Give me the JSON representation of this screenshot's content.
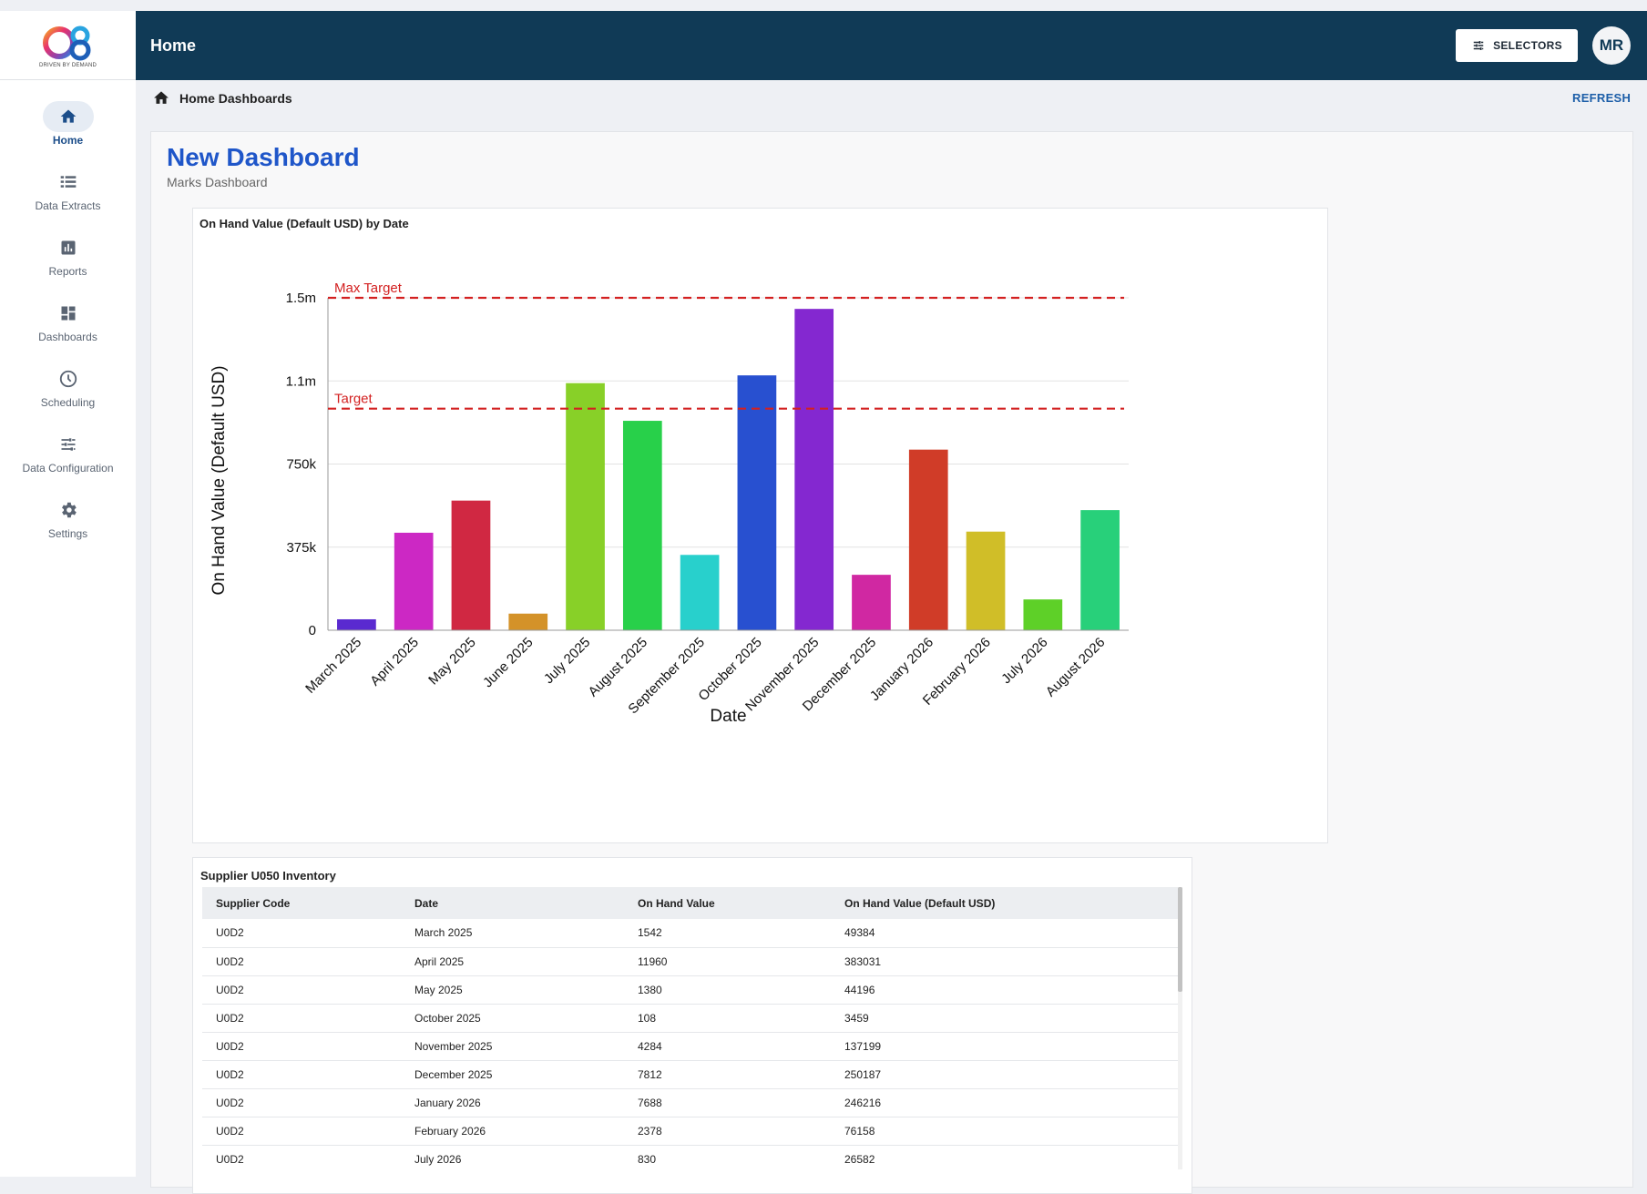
{
  "app": {
    "logo_text": "O8",
    "logo_tagline": "DRIVEN BY DEMAND",
    "header_title": "Home",
    "selectors_label": "SELECTORS",
    "user_initials": "MR",
    "breadcrumb": "Home Dashboards",
    "refresh_label": "REFRESH"
  },
  "sidebar": {
    "items": [
      {
        "label": "Home",
        "icon": "home-icon",
        "active": true
      },
      {
        "label": "Data Extracts",
        "icon": "list-icon",
        "active": false
      },
      {
        "label": "Reports",
        "icon": "bar-chart-icon",
        "active": false
      },
      {
        "label": "Dashboards",
        "icon": "dashboard-icon",
        "active": false
      },
      {
        "label": "Scheduling",
        "icon": "clock-icon",
        "active": false
      },
      {
        "label": "Data Configuration",
        "icon": "sliders-icon",
        "active": false
      },
      {
        "label": "Settings",
        "icon": "gear-icon",
        "active": false
      }
    ]
  },
  "dashboard": {
    "title": "New Dashboard",
    "subtitle": "Marks Dashboard"
  },
  "chart_data": {
    "type": "bar",
    "title": "On Hand Value (Default USD) by Date",
    "xlabel": "Date",
    "ylabel": "On Hand Value (Default USD)",
    "ylim": [
      0,
      1500000
    ],
    "yticks": [
      {
        "value": 0,
        "label": "0"
      },
      {
        "value": 375000,
        "label": "375k"
      },
      {
        "value": 750000,
        "label": "750k"
      },
      {
        "value": 1125000,
        "label": "1.1m"
      },
      {
        "value": 1500000,
        "label": "1.5m"
      }
    ],
    "grid": true,
    "categories": [
      "March 2025",
      "April 2025",
      "May 2025",
      "June 2025",
      "July 2025",
      "August 2025",
      "September 2025",
      "October 2025",
      "November 2025",
      "December 2025",
      "January 2026",
      "February 2026",
      "July 2026",
      "August 2026"
    ],
    "values": [
      49384,
      440000,
      585000,
      75000,
      1115000,
      945000,
      340000,
      1150000,
      1450000,
      250187,
      815000,
      445000,
      139000,
      542000
    ],
    "colors": [
      "#5a2ad0",
      "#cc28c4",
      "#d02842",
      "#d49229",
      "#88d028",
      "#28d04a",
      "#28d0cc",
      "#2850d0",
      "#8428d0",
      "#d028a2",
      "#d03c28",
      "#d0be28",
      "#5ed028",
      "#28d07a"
    ],
    "reference_lines": [
      {
        "label": "Max Target",
        "value": 1500000,
        "color": "#d32121"
      },
      {
        "label": "Target",
        "value": 1000000,
        "color": "#d32121"
      }
    ]
  },
  "table": {
    "title": "Supplier U050 Inventory",
    "columns": [
      "Supplier Code",
      "Date",
      "On Hand Value",
      "On Hand Value (Default USD)"
    ],
    "rows": [
      [
        "U0D2",
        "March 2025",
        "1542",
        "49384"
      ],
      [
        "U0D2",
        "April 2025",
        "11960",
        "383031"
      ],
      [
        "U0D2",
        "May 2025",
        "1380",
        "44196"
      ],
      [
        "U0D2",
        "October 2025",
        "108",
        "3459"
      ],
      [
        "U0D2",
        "November 2025",
        "4284",
        "137199"
      ],
      [
        "U0D2",
        "December 2025",
        "7812",
        "250187"
      ],
      [
        "U0D2",
        "January 2026",
        "7688",
        "246216"
      ],
      [
        "U0D2",
        "February 2026",
        "2378",
        "76158"
      ],
      [
        "U0D2",
        "July 2026",
        "830",
        "26582"
      ]
    ]
  }
}
